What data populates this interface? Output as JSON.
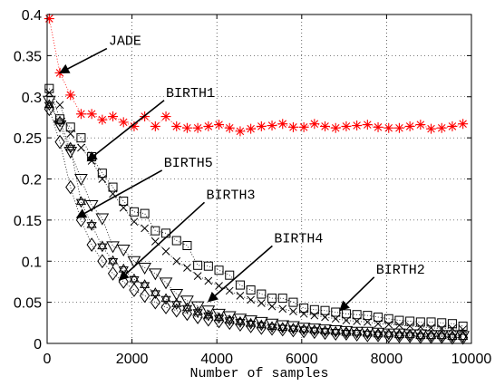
{
  "chart_data": {
    "type": "scatter",
    "title": "",
    "xlabel": "Number of samples",
    "ylabel": "",
    "xlim": [
      0,
      10000
    ],
    "ylim": [
      0,
      0.4
    ],
    "xticks": [
      0,
      2000,
      4000,
      6000,
      8000,
      10000
    ],
    "yticks": [
      0,
      0.05,
      0.1,
      0.15,
      0.2,
      0.25,
      0.3,
      0.35,
      0.4
    ],
    "xtick_labels": [
      "0",
      "2000",
      "4000",
      "6000",
      "8000",
      "10000"
    ],
    "ytick_labels": [
      "0",
      "0.05",
      "0.1",
      "0.15",
      "0.2",
      "0.25",
      "0.3",
      "0.35",
      "0.4"
    ],
    "grid": true,
    "series": [
      {
        "name": "JADE",
        "marker": "asterisk",
        "color": "#ff0000",
        "line": true,
        "x": [
          50,
          300,
          550,
          800,
          1050,
          1300,
          1550,
          1800,
          2050,
          2300,
          2550,
          2800,
          3050,
          3300,
          3550,
          3800,
          4050,
          4300,
          4550,
          4800,
          5050,
          5300,
          5550,
          5800,
          6050,
          6300,
          6550,
          6800,
          7050,
          7300,
          7550,
          7800,
          8050,
          8300,
          8550,
          8800,
          9050,
          9300,
          9550,
          9800
        ],
        "values": [
          0.395,
          0.329,
          0.302,
          0.279,
          0.279,
          0.272,
          0.276,
          0.269,
          0.264,
          0.276,
          0.264,
          0.276,
          0.264,
          0.262,
          0.262,
          0.264,
          0.266,
          0.262,
          0.258,
          0.261,
          0.264,
          0.265,
          0.267,
          0.263,
          0.263,
          0.267,
          0.264,
          0.262,
          0.264,
          0.265,
          0.266,
          0.263,
          0.262,
          0.262,
          0.264,
          0.266,
          0.261,
          0.262,
          0.264,
          0.267
        ]
      },
      {
        "name": "BIRTH1",
        "marker": "square",
        "color": "#000000",
        "line": true,
        "x": [
          50,
          300,
          550,
          800,
          1050,
          1300,
          1550,
          1800,
          2050,
          2300,
          2550,
          2800,
          3050,
          3300,
          3550,
          3800,
          4050,
          4300,
          4550,
          4800,
          5050,
          5300,
          5550,
          5800,
          6050,
          6300,
          6550,
          6800,
          7050,
          7300,
          7550,
          7800,
          8050,
          8300,
          8550,
          8800,
          9050,
          9300,
          9550,
          9800
        ],
        "values": [
          0.31,
          0.273,
          0.263,
          0.25,
          0.227,
          0.207,
          0.19,
          0.173,
          0.16,
          0.158,
          0.137,
          0.134,
          0.125,
          0.119,
          0.095,
          0.094,
          0.089,
          0.083,
          0.071,
          0.065,
          0.06,
          0.055,
          0.055,
          0.05,
          0.043,
          0.041,
          0.04,
          0.038,
          0.036,
          0.035,
          0.034,
          0.032,
          0.03,
          0.028,
          0.027,
          0.026,
          0.026,
          0.025,
          0.024,
          0.021
        ]
      },
      {
        "name": "",
        "marker": "x",
        "color": "#000000",
        "line": true,
        "x": [
          50,
          300,
          550,
          800,
          1050,
          1300,
          1550,
          1800,
          2050,
          2300,
          2550,
          2800,
          3050,
          3300,
          3550,
          3800,
          4050,
          4300,
          4550,
          4800,
          5050,
          5300,
          5550,
          5800,
          6050,
          6300,
          6550,
          6800,
          7050,
          7300,
          7550,
          7800,
          8050,
          8300,
          8550,
          8800,
          9050,
          9300,
          9550,
          9800
        ],
        "values": [
          0.305,
          0.29,
          0.255,
          0.238,
          0.222,
          0.2,
          0.182,
          0.165,
          0.148,
          0.14,
          0.124,
          0.112,
          0.1,
          0.092,
          0.082,
          0.076,
          0.07,
          0.064,
          0.058,
          0.053,
          0.049,
          0.045,
          0.042,
          0.039,
          0.036,
          0.034,
          0.032,
          0.03,
          0.028,
          0.027,
          0.026,
          0.024,
          0.023,
          0.022,
          0.021,
          0.02,
          0.019,
          0.018,
          0.018,
          0.017
        ]
      },
      {
        "name": "BIRTH4",
        "marker": "triangle-down",
        "color": "#000000",
        "line": true,
        "x": [
          50,
          300,
          550,
          800,
          1050,
          1300,
          1550,
          1800,
          2050,
          2300,
          2550,
          2800,
          3050,
          3300,
          3550,
          3800,
          4050,
          4300,
          4550,
          4800,
          5050,
          5300,
          5550,
          5800,
          6050,
          6300,
          6550,
          6800,
          7050,
          7300,
          7550,
          7800,
          8050,
          8300,
          8550,
          8800,
          9050,
          9300,
          9550,
          9800
        ],
        "values": [
          0.295,
          0.265,
          0.233,
          0.2,
          0.168,
          0.152,
          0.118,
          0.114,
          0.1,
          0.092,
          0.085,
          0.074,
          0.06,
          0.052,
          0.045,
          0.04,
          0.036,
          0.033,
          0.03,
          0.028,
          0.026,
          0.024,
          0.022,
          0.021,
          0.019,
          0.018,
          0.017,
          0.016,
          0.015,
          0.014,
          0.014,
          0.013,
          0.012,
          0.012,
          0.011,
          0.011,
          0.01,
          0.01,
          0.01,
          0.009
        ]
      },
      {
        "name": "BIRTH3",
        "marker": "hexagram",
        "color": "#000000",
        "line": true,
        "x": [
          50,
          300,
          550,
          800,
          1050,
          1300,
          1550,
          1800,
          2050,
          2300,
          2550,
          2800,
          3050,
          3300,
          3550,
          3800,
          4050,
          4300,
          4550,
          4800,
          5050,
          5300,
          5550,
          5800,
          6050,
          6300,
          6550,
          6800,
          7050,
          7300,
          7550,
          7800,
          8050,
          8300,
          8550,
          8800,
          9050,
          9300,
          9550,
          9800
        ],
        "values": [
          0.29,
          0.27,
          0.238,
          0.172,
          0.144,
          0.118,
          0.1,
          0.09,
          0.078,
          0.071,
          0.061,
          0.054,
          0.048,
          0.043,
          0.038,
          0.034,
          0.031,
          0.028,
          0.026,
          0.024,
          0.022,
          0.02,
          0.019,
          0.018,
          0.017,
          0.016,
          0.015,
          0.014,
          0.013,
          0.013,
          0.012,
          0.011,
          0.011,
          0.01,
          0.01,
          0.009,
          0.009,
          0.009,
          0.008,
          0.008
        ]
      },
      {
        "name": "BIRTH5",
        "marker": "diamond",
        "color": "#000000",
        "line": true,
        "x": [
          50,
          300,
          550,
          800,
          1050,
          1300,
          1550,
          1800,
          2050,
          2300,
          2550,
          2800,
          3050,
          3300,
          3550,
          3800,
          4050,
          4300,
          4550,
          4800,
          5050,
          5300,
          5550,
          5800,
          6050,
          6300,
          6550,
          6800,
          7050,
          7300,
          7550,
          7800,
          8050,
          8300,
          8550,
          8800,
          9050,
          9300,
          9550,
          9800
        ],
        "values": [
          0.285,
          0.245,
          0.19,
          0.15,
          0.12,
          0.1,
          0.085,
          0.075,
          0.065,
          0.058,
          0.05,
          0.044,
          0.04,
          0.036,
          0.032,
          0.029,
          0.027,
          0.025,
          0.023,
          0.021,
          0.019,
          0.018,
          0.017,
          0.016,
          0.015,
          0.014,
          0.013,
          0.012,
          0.012,
          0.011,
          0.01,
          0.01,
          0.009,
          0.009,
          0.009,
          0.008,
          0.008,
          0.008,
          0.007,
          0.007
        ]
      }
    ],
    "annotations": [
      {
        "text": "JADE",
        "series": "JADE",
        "arrow_to": [
          300,
          0.329
        ],
        "text_at": [
          1450,
          0.363
        ]
      },
      {
        "text": "BIRTH1",
        "series": "BIRTH1",
        "arrow_to": [
          950,
          0.222
        ],
        "text_at": [
          2800,
          0.3
        ]
      },
      {
        "text": "BIRTH5",
        "series": "BIRTH5",
        "arrow_to": [
          700,
          0.153
        ],
        "text_at": [
          2750,
          0.215
        ]
      },
      {
        "text": "BIRTH3",
        "series": "BIRTH3",
        "arrow_to": [
          1700,
          0.077
        ],
        "text_at": [
          3750,
          0.176
        ]
      },
      {
        "text": "BIRTH4",
        "series": "BIRTH4",
        "arrow_to": [
          3800,
          0.051
        ],
        "text_at": [
          5350,
          0.123
        ]
      },
      {
        "text": "BIRTH2",
        "series": "BIRTH2",
        "arrow_to": [
          6900,
          0.04
        ],
        "text_at": [
          7750,
          0.085
        ]
      }
    ]
  }
}
